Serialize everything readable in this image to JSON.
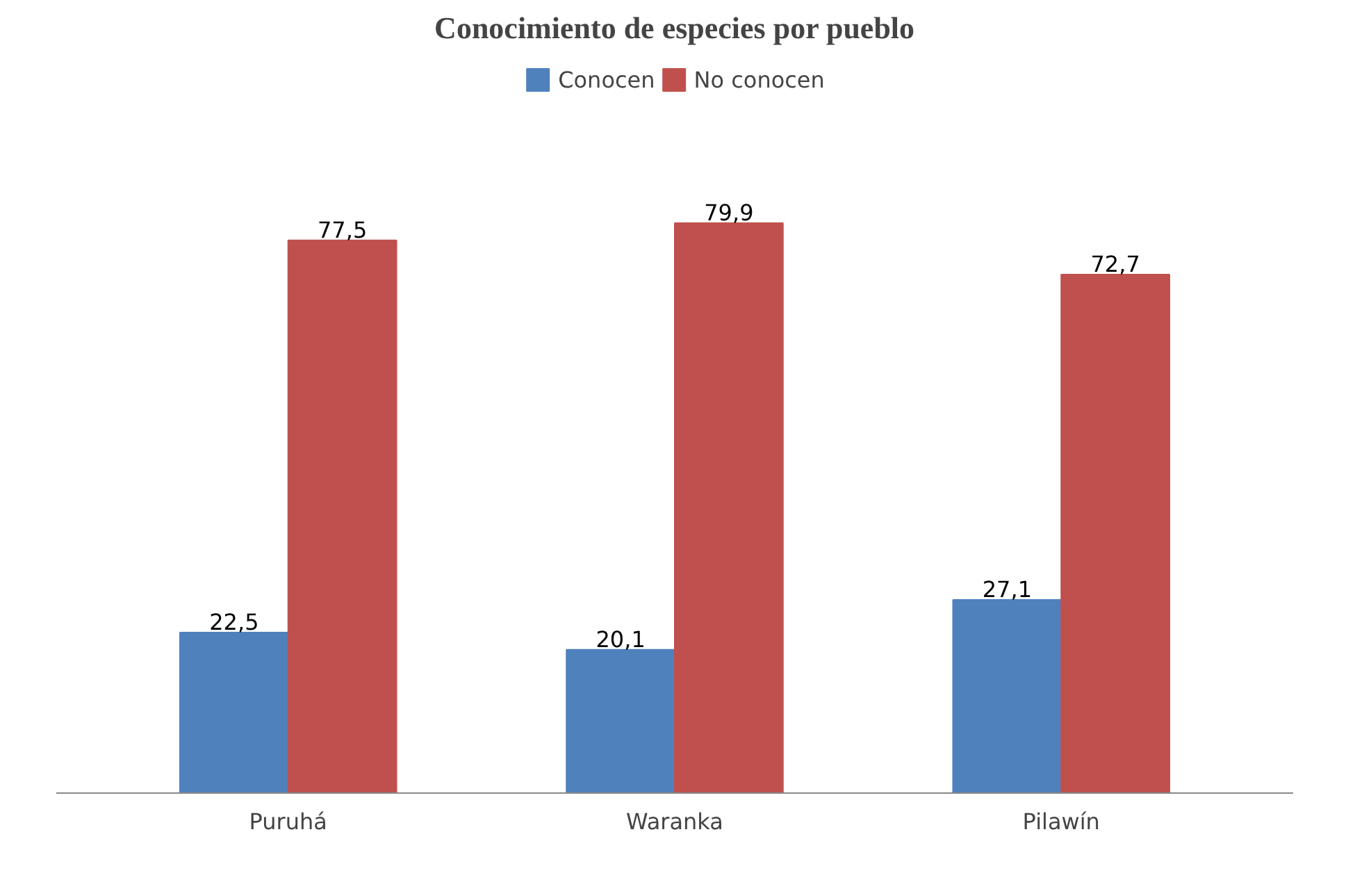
{
  "chart_data": {
    "type": "bar",
    "title": "Conocimiento de especies por pueblo",
    "categories": [
      "Puruhá",
      "Waranka",
      "Pilawín"
    ],
    "series": [
      {
        "name": "Conocen",
        "color": "#4f81bd",
        "values": [
          22.5,
          20.1,
          27.1
        ],
        "value_labels": [
          "22,5",
          "20,1",
          "27,1"
        ]
      },
      {
        "name": "No conocen",
        "color": "#c0504d",
        "values": [
          77.5,
          79.9,
          72.7
        ],
        "value_labels": [
          "77,5",
          "79,9",
          "72,7"
        ]
      }
    ],
    "legend": "top",
    "grid": false
  }
}
